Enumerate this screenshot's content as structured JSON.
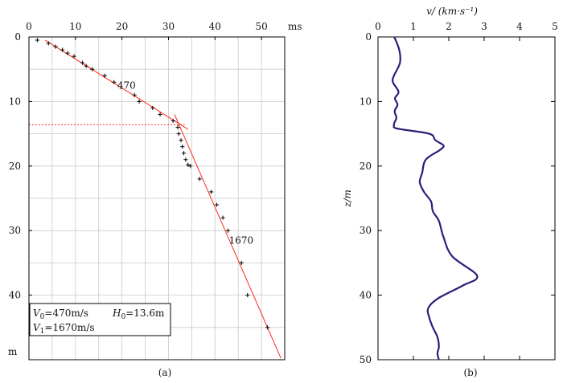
{
  "chart_data": [
    {
      "type": "scatter",
      "panel_label": "(a)",
      "x_unit_label": "ms",
      "y_unit_label": "m",
      "xlim": [
        0,
        55
      ],
      "ylim": [
        0,
        50
      ],
      "xticks": [
        0,
        10,
        20,
        30,
        40,
        50
      ],
      "yticks": [
        0,
        10,
        20,
        30,
        40
      ],
      "points": {
        "t": [
          1.8,
          4.2,
          5.7,
          7.2,
          8.3,
          9.7,
          11.5,
          12.3,
          13.6,
          16.3,
          18.3,
          22.7,
          23.7,
          26.6,
          28.2,
          31.0,
          32.0,
          32.2,
          32.7,
          33.0,
          33.3,
          33.7,
          34.2,
          34.7,
          36.7,
          39.2,
          40.4,
          41.7,
          42.8,
          45.7,
          47.0,
          51.3
        ],
        "z": [
          0.5,
          1.0,
          1.5,
          2.0,
          2.5,
          3.0,
          4.0,
          4.5,
          5.0,
          6.0,
          7.0,
          9.0,
          10.0,
          11.0,
          12.0,
          13.0,
          14.0,
          15.0,
          16.0,
          17.0,
          18.0,
          19.0,
          19.8,
          20.0,
          22.0,
          24.0,
          26.0,
          28.0,
          30.0,
          35.0,
          40.0,
          45.0
        ]
      },
      "fit_lines": [
        {
          "label": "470",
          "t": [
            3.5,
            34.2
          ],
          "z": [
            0.5,
            14.3
          ]
        },
        {
          "label": "1670",
          "t": [
            31.3,
            54.2
          ],
          "z": [
            12.0,
            49.8
          ]
        }
      ],
      "crossover_depth": 13.6,
      "legend_lines": [
        {
          "symbol": "V",
          "sub": "0",
          "text": "=470m/s"
        },
        {
          "symbol": "H",
          "sub": "0",
          "text": "=13.6m"
        },
        {
          "symbol": "V",
          "sub": "1",
          "text": "=1670m/s"
        }
      ]
    },
    {
      "type": "line",
      "panel_label": "(b)",
      "xlabel": "v/ (km·s⁻¹)",
      "ylabel": "z/m",
      "xlim": [
        0,
        5
      ],
      "ylim": [
        0,
        50
      ],
      "xticks": [
        0,
        1,
        2,
        3,
        4,
        5
      ],
      "yticks": [
        0,
        10,
        20,
        30,
        40,
        50
      ],
      "x": [
        0.46,
        0.6,
        0.62,
        0.45,
        0.42,
        0.58,
        0.48,
        0.55,
        0.47,
        0.52,
        0.47,
        0.45,
        0.55,
        1.45,
        1.62,
        1.85,
        1.75,
        1.35,
        1.25,
        1.18,
        1.3,
        1.5,
        1.55,
        1.72,
        1.85,
        2.1,
        2.8,
        2.4,
        1.7,
        1.42,
        1.45,
        1.55,
        1.68,
        1.72,
        1.68,
        1.72
      ],
      "y": [
        0,
        2,
        4,
        6,
        7,
        8.5,
        9.5,
        10.5,
        11.5,
        12.5,
        13.2,
        13.7,
        14.2,
        15,
        16,
        16.8,
        17.5,
        19,
        21,
        22.5,
        24,
        25.5,
        27,
        28.5,
        31,
        34,
        37,
        38.5,
        40.5,
        42,
        43.5,
        45,
        46.5,
        48,
        49,
        50
      ]
    }
  ]
}
